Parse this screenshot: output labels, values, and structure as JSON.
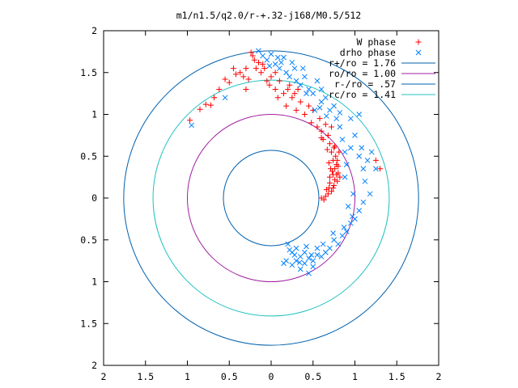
{
  "chart_data": {
    "type": "scatter",
    "title": "m1/n1.5/q2.0/r-+.32-j168/M0.5/512",
    "xlabel": "",
    "ylabel": "",
    "xlim": [
      -2,
      2
    ],
    "ylim": [
      -2,
      2
    ],
    "x_tick_values": [
      -2,
      -1.5,
      -1,
      -0.5,
      0,
      0.5,
      1,
      1.5,
      2
    ],
    "x_tick_labels": [
      "2",
      "1.5",
      "1",
      "0.5",
      "0",
      "0.5",
      "1",
      "1.5",
      "2"
    ],
    "y_tick_values": [
      2,
      1.5,
      1,
      0.5,
      0,
      -0.5,
      -1,
      -1.5,
      -2
    ],
    "y_tick_labels": [
      "2",
      "1.5",
      "1",
      "0.5",
      "0",
      "0.5",
      "1",
      "1.5",
      "2"
    ],
    "grid": false,
    "legend_position": "top-right",
    "series": [
      {
        "name": "W phase",
        "marker": "+",
        "color": "#ff0000",
        "points": [
          [
            -0.97,
            0.93
          ],
          [
            -0.85,
            1.06
          ],
          [
            -0.78,
            1.12
          ],
          [
            -0.72,
            1.11
          ],
          [
            -0.68,
            1.2
          ],
          [
            -0.62,
            1.3
          ],
          [
            -0.55,
            1.42
          ],
          [
            -0.5,
            1.38
          ],
          [
            -0.42,
            1.48
          ],
          [
            -0.37,
            1.5
          ],
          [
            -0.33,
            1.45
          ],
          [
            -0.3,
            1.3
          ],
          [
            -0.27,
            1.42
          ],
          [
            -0.24,
            1.74
          ],
          [
            -0.22,
            1.7
          ],
          [
            -0.2,
            1.65
          ],
          [
            -0.18,
            1.55
          ],
          [
            -0.15,
            1.62
          ],
          [
            -0.12,
            1.5
          ],
          [
            -0.08,
            1.55
          ],
          [
            -0.05,
            1.4
          ],
          [
            -0.02,
            1.35
          ],
          [
            0.0,
            1.45
          ],
          [
            0.05,
            1.3
          ],
          [
            0.08,
            1.2
          ],
          [
            0.1,
            1.4
          ],
          [
            0.15,
            1.25
          ],
          [
            0.18,
            1.1
          ],
          [
            0.22,
            1.35
          ],
          [
            0.25,
            1.2
          ],
          [
            0.3,
            1.05
          ],
          [
            0.32,
            1.3
          ],
          [
            0.35,
            1.15
          ],
          [
            0.4,
            1.0
          ],
          [
            0.45,
            1.1
          ],
          [
            0.48,
            0.9
          ],
          [
            0.5,
            1.05
          ],
          [
            0.55,
            0.85
          ],
          [
            0.58,
            0.95
          ],
          [
            0.6,
            0.8
          ],
          [
            0.62,
            0.7
          ],
          [
            0.65,
            0.88
          ],
          [
            0.68,
            0.75
          ],
          [
            0.7,
            0.65
          ],
          [
            0.72,
            0.55
          ],
          [
            0.74,
            0.45
          ],
          [
            0.75,
            0.6
          ],
          [
            0.76,
            0.35
          ],
          [
            0.77,
            0.5
          ],
          [
            0.78,
            0.4
          ],
          [
            0.78,
            0.28
          ],
          [
            0.79,
            0.2
          ],
          [
            0.8,
            0.3
          ],
          [
            0.75,
            0.15
          ],
          [
            0.72,
            0.08
          ],
          [
            0.7,
            0.18
          ],
          [
            0.68,
            0.05
          ],
          [
            0.65,
            0.02
          ],
          [
            0.63,
            -0.02
          ],
          [
            0.6,
            0.0
          ],
          [
            0.66,
            0.1
          ],
          [
            0.7,
            0.25
          ],
          [
            0.73,
            0.32
          ],
          [
            0.76,
            0.22
          ],
          [
            0.8,
            0.38
          ],
          [
            0.82,
            0.25
          ],
          [
            0.74,
            0.12
          ],
          [
            1.3,
            0.35
          ],
          [
            1.25,
            0.45
          ],
          [
            0.2,
            1.3
          ],
          [
            0.05,
            1.5
          ],
          [
            -0.1,
            1.6
          ],
          [
            -0.3,
            1.55
          ],
          [
            -0.45,
            1.55
          ],
          [
            0.28,
            1.25
          ],
          [
            0.6,
            0.72
          ],
          [
            0.72,
            0.85
          ],
          [
            0.76,
            0.62
          ],
          [
            0.69,
            0.42
          ],
          [
            0.71,
            0.35
          ],
          [
            0.74,
            0.28
          ],
          [
            0.69,
            0.12
          ],
          [
            0.79,
            0.45
          ],
          [
            0.81,
            0.55
          ],
          [
            0.67,
            0.58
          ]
        ]
      },
      {
        "name": "drho phase",
        "marker": "x",
        "color": "#0080ff",
        "points": [
          [
            -0.95,
            0.87
          ],
          [
            -0.55,
            1.2
          ],
          [
            -0.15,
            1.76
          ],
          [
            -0.1,
            1.7
          ],
          [
            -0.05,
            1.65
          ],
          [
            0.0,
            1.72
          ],
          [
            0.05,
            1.6
          ],
          [
            0.1,
            1.55
          ],
          [
            0.15,
            1.68
          ],
          [
            0.18,
            1.5
          ],
          [
            0.22,
            1.45
          ],
          [
            0.28,
            1.55
          ],
          [
            0.3,
            1.4
          ],
          [
            0.35,
            1.35
          ],
          [
            0.4,
            1.45
          ],
          [
            0.45,
            1.3
          ],
          [
            0.5,
            1.25
          ],
          [
            0.55,
            1.4
          ],
          [
            0.6,
            1.15
          ],
          [
            0.65,
            1.2
          ],
          [
            0.7,
            1.05
          ],
          [
            0.75,
            1.1
          ],
          [
            0.78,
            0.95
          ],
          [
            0.82,
            0.85
          ],
          [
            0.85,
            0.7
          ],
          [
            0.88,
            0.55
          ],
          [
            0.9,
            0.4
          ],
          [
            0.95,
            0.6
          ],
          [
            1.0,
            0.75
          ],
          [
            1.05,
            0.5
          ],
          [
            1.1,
            0.35
          ],
          [
            1.12,
            0.2
          ],
          [
            1.15,
            0.45
          ],
          [
            1.2,
            0.55
          ],
          [
            1.18,
            0.05
          ],
          [
            1.1,
            -0.05
          ],
          [
            1.05,
            -0.15
          ],
          [
            1.0,
            -0.25
          ],
          [
            0.95,
            -0.3
          ],
          [
            0.9,
            -0.4
          ],
          [
            0.85,
            -0.45
          ],
          [
            0.8,
            -0.55
          ],
          [
            0.75,
            -0.5
          ],
          [
            0.7,
            -0.6
          ],
          [
            0.65,
            -0.65
          ],
          [
            0.6,
            -0.7
          ],
          [
            0.55,
            -0.68
          ],
          [
            0.5,
            -0.75
          ],
          [
            0.45,
            -0.72
          ],
          [
            0.4,
            -0.65
          ],
          [
            0.35,
            -0.7
          ],
          [
            0.3,
            -0.6
          ],
          [
            0.25,
            -0.65
          ],
          [
            0.2,
            -0.55
          ],
          [
            0.18,
            -0.75
          ],
          [
            0.25,
            -0.8
          ],
          [
            0.35,
            -0.85
          ],
          [
            0.45,
            -0.9
          ],
          [
            0.5,
            -0.82
          ],
          [
            0.15,
            -0.78
          ],
          [
            0.3,
            -0.75
          ],
          [
            0.4,
            -0.78
          ],
          [
            0.55,
            -0.6
          ],
          [
            0.62,
            -0.55
          ],
          [
            0.42,
            -0.58
          ],
          [
            0.28,
            -0.68
          ],
          [
            0.22,
            -0.62
          ],
          [
            0.95,
            0.95
          ],
          [
            1.05,
            1.0
          ],
          [
            1.25,
            0.35
          ],
          [
            0.88,
            0.25
          ],
          [
            0.92,
            -0.1
          ],
          [
            0.98,
            0.05
          ],
          [
            0.6,
            1.3
          ],
          [
            0.52,
            1.05
          ],
          [
            0.38,
            1.55
          ],
          [
            0.25,
            1.62
          ],
          [
            0.08,
            1.68
          ],
          [
            -0.02,
            1.58
          ],
          [
            0.12,
            1.62
          ],
          [
            0.42,
            1.25
          ],
          [
            0.58,
            1.08
          ],
          [
            0.66,
            0.98
          ],
          [
            0.82,
            1.02
          ],
          [
            1.08,
            0.6
          ],
          [
            0.97,
            -0.22
          ],
          [
            0.87,
            -0.35
          ],
          [
            0.74,
            -0.42
          ],
          [
            0.34,
            -0.77
          ],
          [
            0.48,
            -0.68
          ]
        ]
      }
    ],
    "circles": [
      {
        "label": "r+/ro = 1.76",
        "r": 1.76,
        "color": "#0060ad"
      },
      {
        "label": "ro/ro = 1.00",
        "r": 1.0,
        "color": "#a020a0"
      },
      {
        "label": "r-/ro = .57",
        "r": 0.57,
        "color": "#0060ad"
      },
      {
        "label": "rc/ro = 1.41",
        "r": 1.41,
        "color": "#20c0c0"
      }
    ]
  }
}
